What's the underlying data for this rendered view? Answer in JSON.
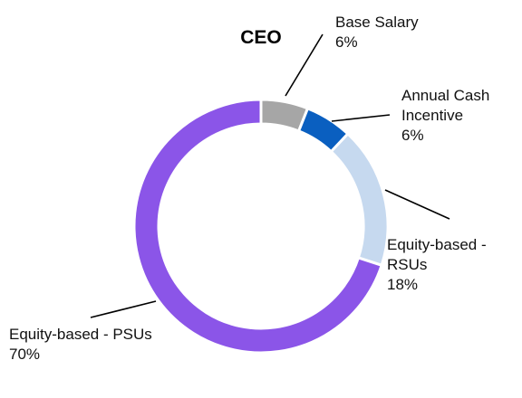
{
  "chart_data": {
    "type": "pie",
    "variant": "donut",
    "title": "CEO",
    "slices": [
      {
        "name": "Base Salary",
        "label_lines": [
          "Base Salary"
        ],
        "value": 6,
        "value_label": "6%",
        "color": "#a6a6a6"
      },
      {
        "name": "Annual Cash Incentive",
        "label_lines": [
          "Annual Cash",
          "Incentive"
        ],
        "value": 6,
        "value_label": "6%",
        "color": "#0a5fc0"
      },
      {
        "name": "Equity-based - RSUs",
        "label_lines": [
          "Equity-based -",
          "RSUs"
        ],
        "value": 18,
        "value_label": "18%",
        "color": "#c6d9ef"
      },
      {
        "name": "Equity-based - PSUs",
        "label_lines": [
          "Equity-based - PSUs"
        ],
        "value": 70,
        "value_label": "70%",
        "color": "#8b55e8"
      }
    ],
    "legend": "none"
  }
}
